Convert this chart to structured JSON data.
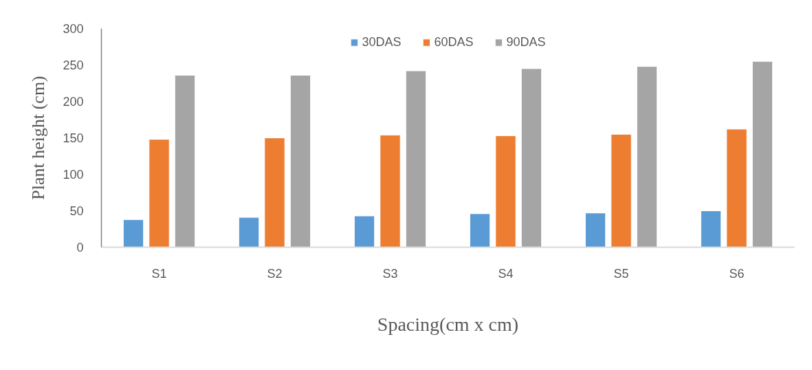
{
  "chart_data": {
    "type": "bar",
    "xlabel": "Spacing(cm x cm)",
    "ylabel": "Plant height (cm)",
    "categories": [
      "S1",
      "S2",
      "S3",
      "S4",
      "S5",
      "S6"
    ],
    "series": [
      {
        "name": "30DAS",
        "color": "#5b9bd5",
        "values": [
          38,
          41,
          43,
          46,
          47,
          50
        ]
      },
      {
        "name": "60DAS",
        "color": "#ed7d31",
        "values": [
          148,
          150,
          154,
          153,
          155,
          162
        ]
      },
      {
        "name": "90DAS",
        "color": "#a5a5a5",
        "values": [
          236,
          236,
          242,
          245,
          248,
          255
        ]
      }
    ],
    "ylim": [
      0,
      300
    ],
    "yticks": [
      0,
      50,
      100,
      150,
      200,
      250,
      300
    ],
    "legend": "top"
  }
}
